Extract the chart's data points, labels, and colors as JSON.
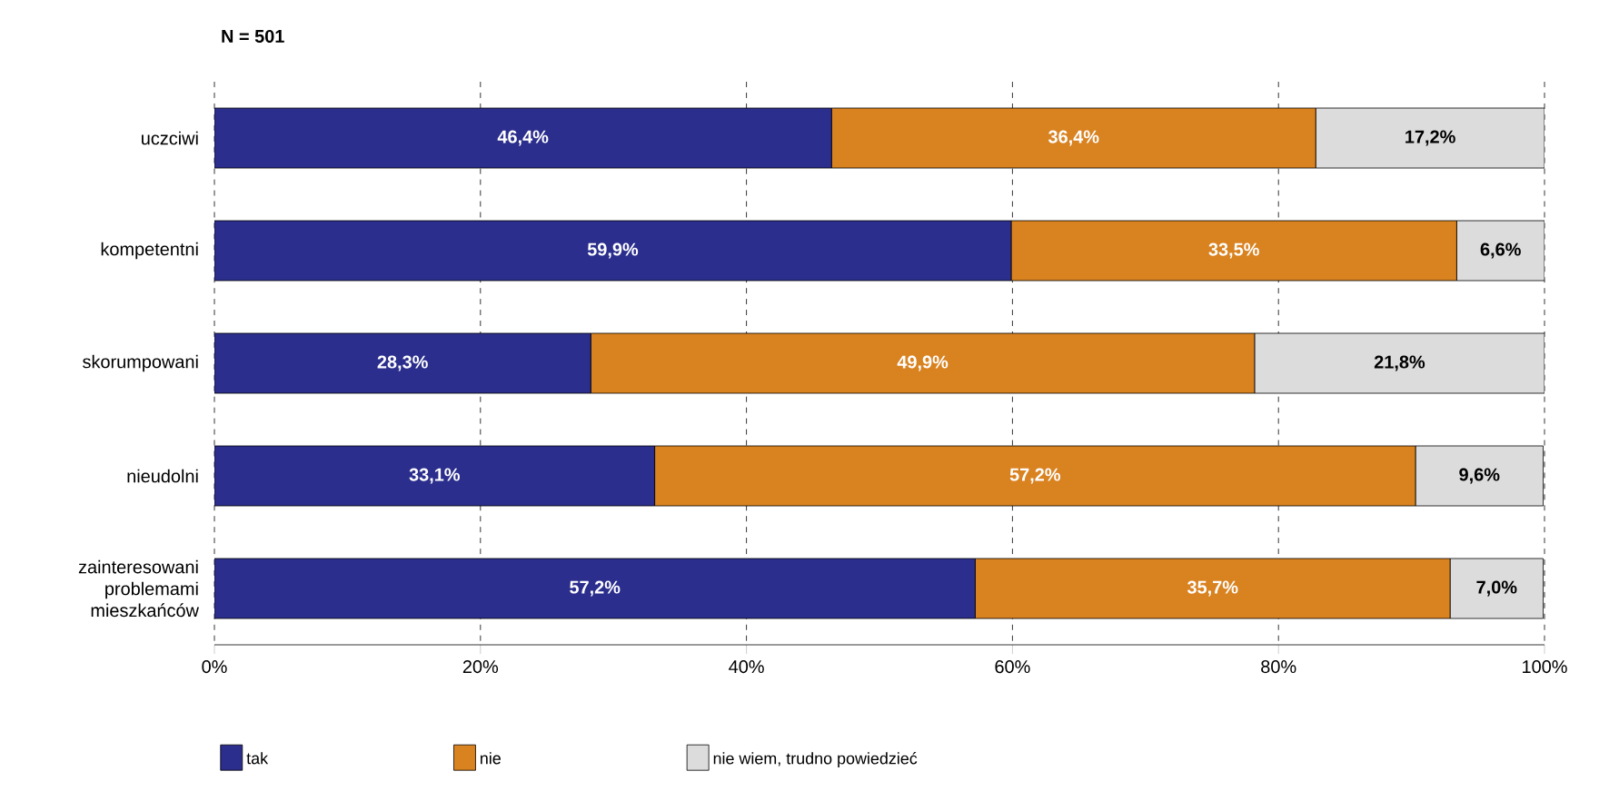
{
  "chart_data": {
    "type": "bar",
    "orientation": "horizontal",
    "stacked": true,
    "title": "N = 501",
    "categories": [
      "uczciwi",
      "kompetentni",
      "skorumpowani",
      "nieudolni",
      "zainteresowani problemami mieszkańców"
    ],
    "series": [
      {
        "name": "tak",
        "color": "#2b2e8c",
        "values": [
          46.4,
          59.9,
          28.3,
          33.1,
          57.2
        ],
        "value_labels": [
          "46,4%",
          "59,9%",
          "28,3%",
          "33,1%",
          "57,2%"
        ]
      },
      {
        "name": "nie",
        "color": "#d98220",
        "values": [
          36.4,
          33.5,
          49.9,
          57.2,
          35.7
        ],
        "value_labels": [
          "36,4%",
          "33,5%",
          "49,9%",
          "57,2%",
          "35,7%"
        ]
      },
      {
        "name": "nie wiem, trudno powiedzieć",
        "color": "#dcdcdc",
        "values": [
          17.2,
          6.6,
          21.8,
          9.6,
          7.0
        ],
        "value_labels": [
          "17,2%",
          "6,6%",
          "21,8%",
          "9,6%",
          "7,0%"
        ]
      }
    ],
    "xlim": [
      0,
      100
    ],
    "xticks": [
      {
        "value": 0,
        "label": "0%"
      },
      {
        "value": 20,
        "label": "20%"
      },
      {
        "value": 40,
        "label": "40%"
      },
      {
        "value": 60,
        "label": "60%"
      },
      {
        "value": 80,
        "label": "80%"
      },
      {
        "value": 100,
        "label": "100%"
      }
    ],
    "grid": "x",
    "legend": "bottom"
  }
}
